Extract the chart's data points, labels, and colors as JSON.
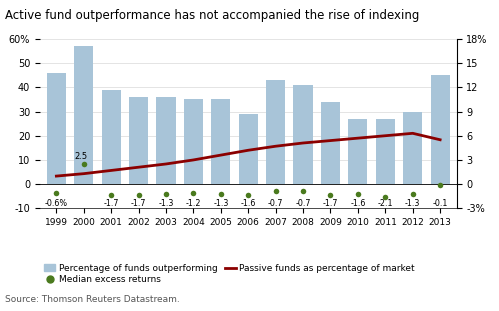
{
  "title": "Active fund outperformance has not accompanied the rise of indexing",
  "source": "Source: Thomson Reuters Datastream.",
  "years": [
    1999,
    2000,
    2001,
    2002,
    2003,
    2004,
    2005,
    2006,
    2007,
    2008,
    2009,
    2010,
    2011,
    2012,
    2013
  ],
  "bar_values": [
    46,
    57,
    39,
    36,
    36,
    35,
    35,
    29,
    43,
    41,
    34,
    27,
    27,
    30,
    45
  ],
  "bar_color": "#a8c4d8",
  "median_labels": [
    "-0.6%",
    "2.5",
    "-1.7",
    "-1.7",
    "-1.3",
    "-1.2",
    "-1.3",
    "-1.6",
    "-0.7",
    "-0.7",
    "-1.7",
    "-1.6",
    "-2.1",
    "-1.3",
    "-0.1"
  ],
  "median_dot_color": "#4a7a1e",
  "dot_y_left": [
    -3.5,
    8.5,
    -4.5,
    -4.5,
    -4.0,
    -3.5,
    -4.0,
    -4.5,
    -3.0,
    -3.0,
    -4.5,
    -4.0,
    -5.5,
    -4.0,
    -0.5
  ],
  "passive_right": [
    1.0,
    1.3,
    1.7,
    2.1,
    2.5,
    3.0,
    3.6,
    4.2,
    4.7,
    5.1,
    5.4,
    5.7,
    6.0,
    6.3,
    5.5
  ],
  "passive_line_color": "#8b0000",
  "left_ylim": [
    -10,
    60
  ],
  "left_yticks": [
    -10,
    0,
    10,
    20,
    30,
    40,
    50,
    60
  ],
  "left_yticklabels": [
    "-10",
    "0",
    "10",
    "20",
    "30",
    "40",
    "50",
    "60%"
  ],
  "right_ylim": [
    -3,
    18
  ],
  "right_yticks": [
    -3,
    0,
    3,
    6,
    9,
    12,
    15,
    18
  ],
  "right_yticklabels": [
    "-3%",
    "0",
    "3",
    "6",
    "9",
    "12",
    "15",
    "18%"
  ],
  "legend_row1": [
    "Percentage of funds outperforming",
    "Median excess returns"
  ],
  "legend_row2": [
    "Passive funds as percentage of market"
  ]
}
